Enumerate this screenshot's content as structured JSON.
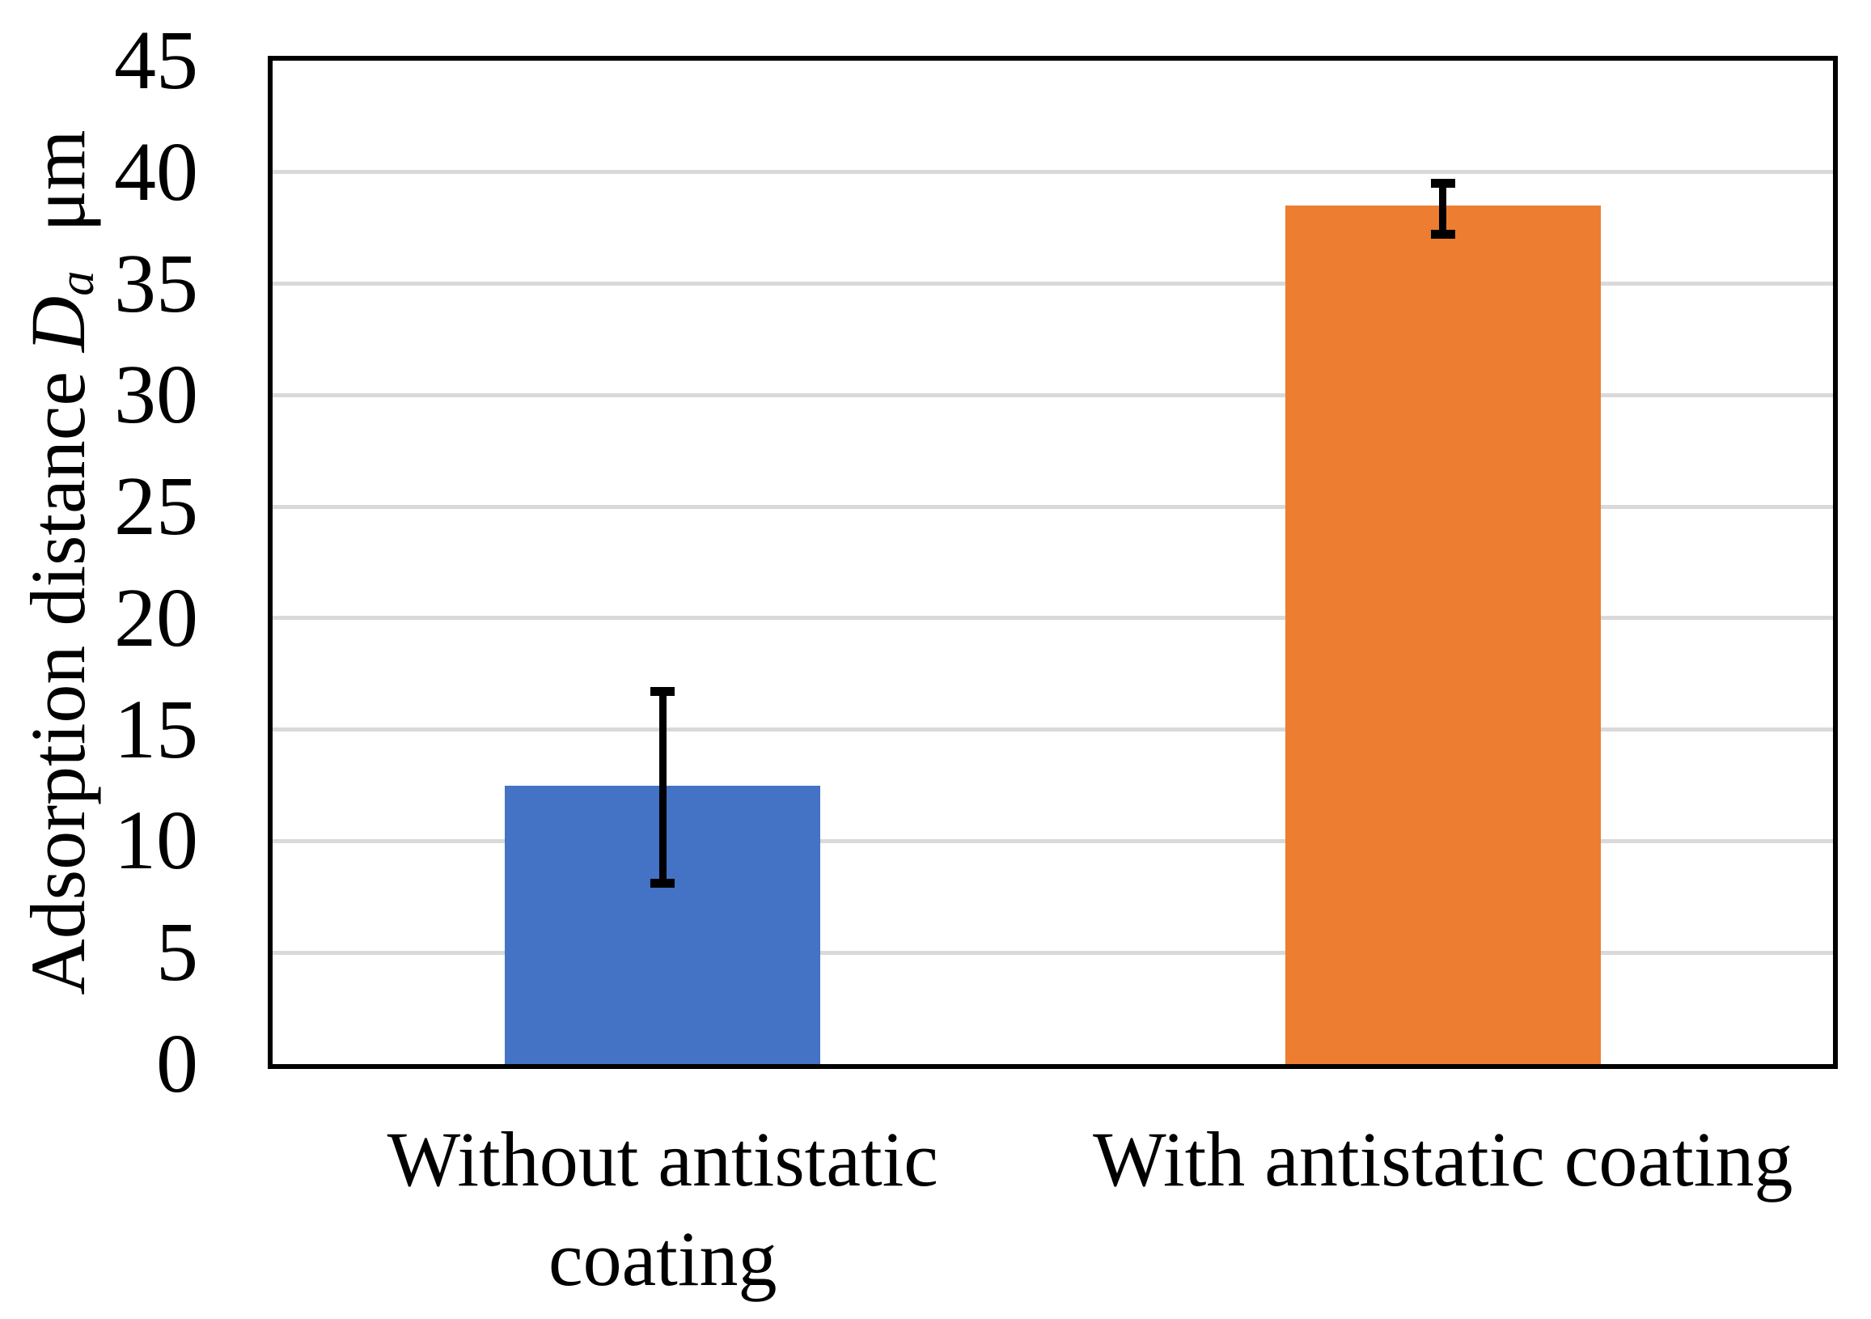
{
  "figure": {
    "background": "#FFFFFF"
  },
  "chart_data": {
    "type": "bar",
    "title": "",
    "categories": [
      "Without antistatic coating",
      "With antistatic coating"
    ],
    "category_label_lines": [
      [
        "Without antistatic",
        "coating"
      ],
      [
        "With antistatic coating"
      ]
    ],
    "values": [
      12.5,
      38.5
    ],
    "error_bars": {
      "high": [
        16.7,
        39.5
      ],
      "low": [
        8.1,
        37.2
      ]
    },
    "bar_colors": [
      "#4472C4",
      "#ED7D31"
    ],
    "ylabel": {
      "prefix": "Adsorption distance",
      "symbol": "D",
      "subscript": "a",
      "unit": "μm",
      "full_text": "Adsorption distance Dₐ μm"
    },
    "xlabel": "",
    "ylim": [
      0,
      45
    ],
    "yticks": [
      0,
      5,
      10,
      15,
      20,
      25,
      30,
      35,
      40,
      45
    ],
    "grid": true,
    "gridline_color": "#D9D9D9",
    "axis_color": "#000000",
    "error_bar_color": "#000000",
    "legend": "none"
  }
}
